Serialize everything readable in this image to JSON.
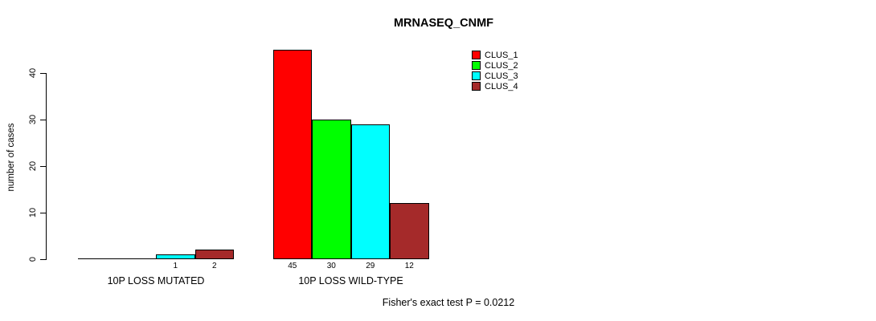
{
  "chart_data": {
    "type": "bar",
    "title": "MRNASEQ_CNMF",
    "ylabel": "number of cases",
    "xlabel": "",
    "yticks": [
      0,
      10,
      20,
      30,
      40
    ],
    "ylim": [
      0,
      45
    ],
    "grid": false,
    "legend_position": "top-right",
    "series_names": [
      "CLUS_1",
      "CLUS_2",
      "CLUS_3",
      "CLUS_4"
    ],
    "series_colors": [
      "#FF0000",
      "#00FF00",
      "#00FFFF",
      "#A52A2A"
    ],
    "groups": [
      {
        "label": "10P LOSS MUTATED",
        "values": [
          0,
          0,
          1,
          2
        ]
      },
      {
        "label": "10P LOSS WILD-TYPE",
        "values": [
          45,
          30,
          29,
          12
        ]
      }
    ],
    "bar_value_labels_shown": true,
    "annotation": "Fisher's exact test P = 0.0212",
    "background_color": "#FFFFFF",
    "axis_color": "#000000"
  }
}
